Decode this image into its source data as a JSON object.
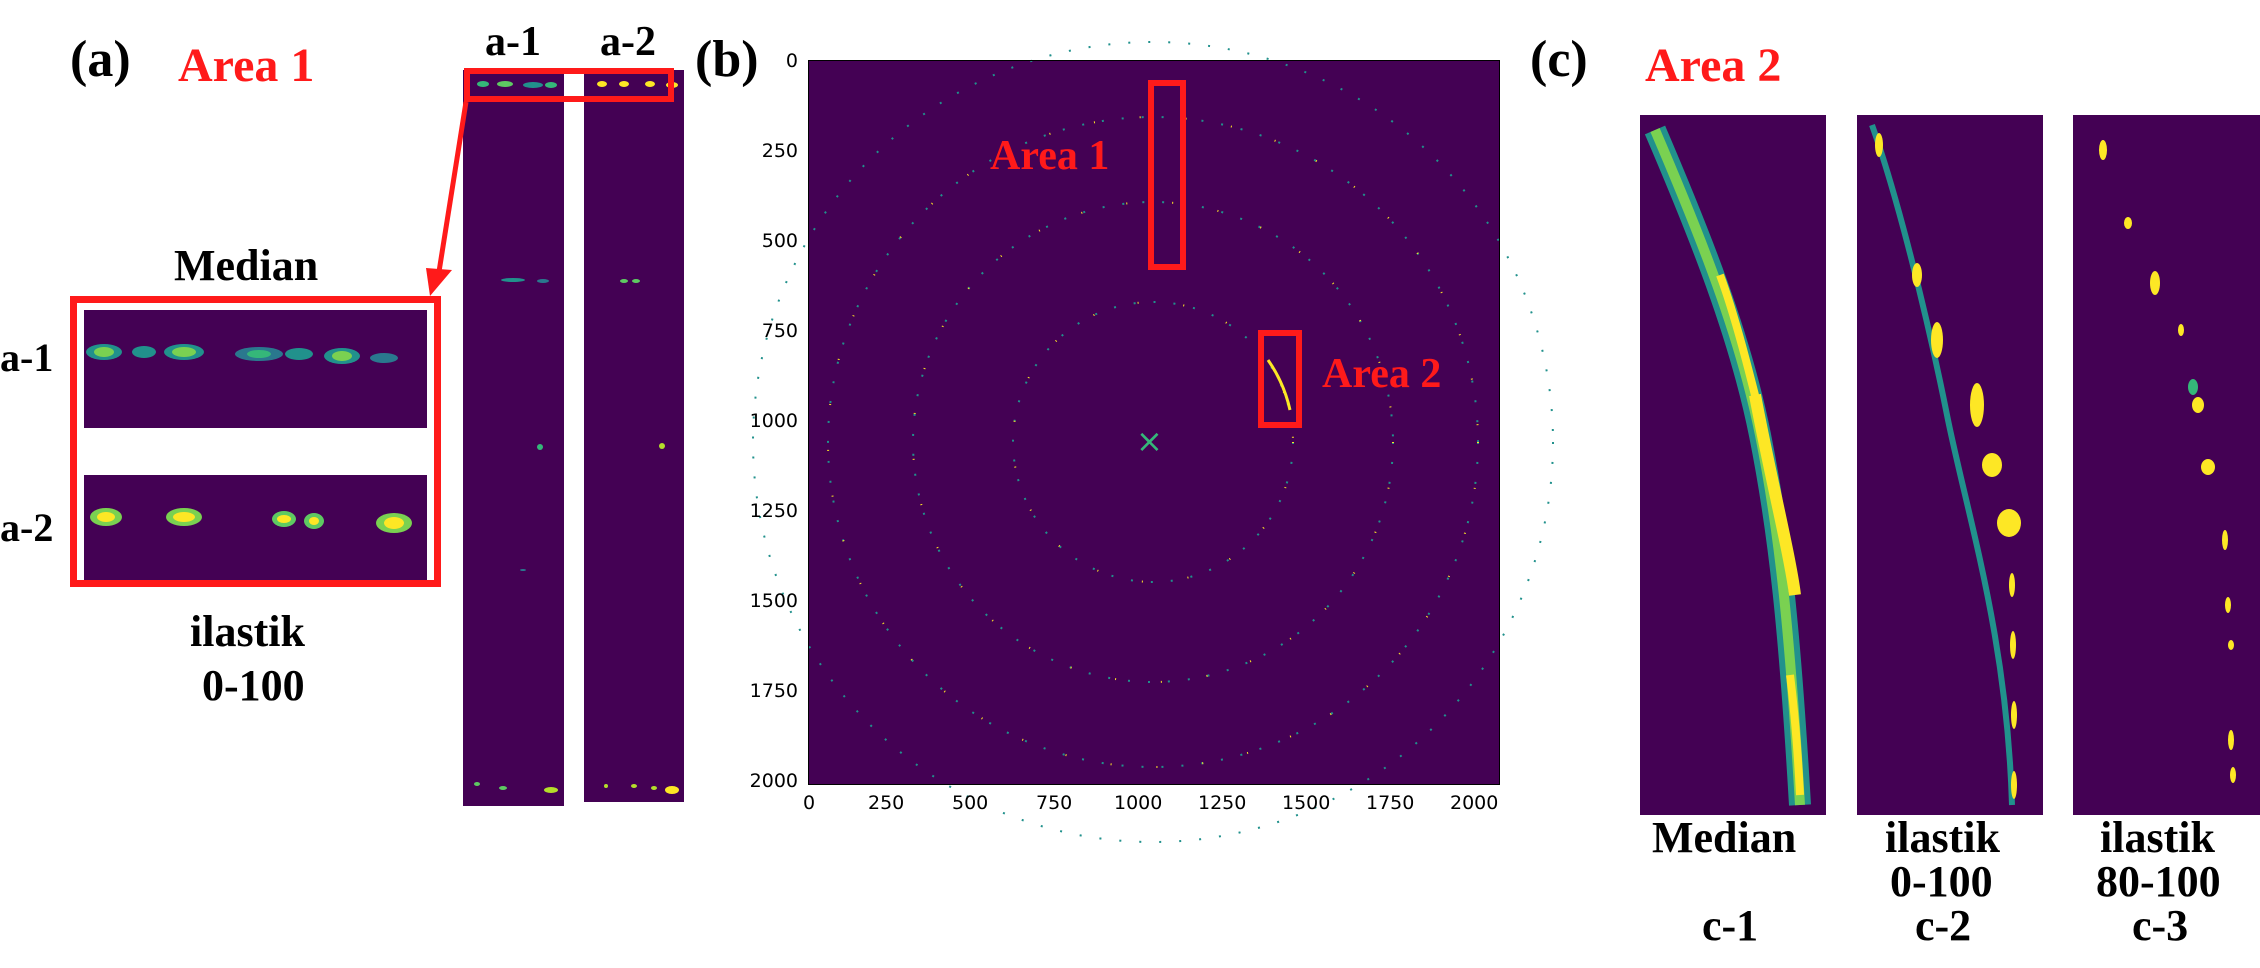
{
  "panel_a": {
    "label": "(a)",
    "area_title": "Area 1",
    "strip_label_1": "a-1",
    "strip_label_2": "a-2",
    "zoom_title": "Median",
    "zoom_row_1": "a-1",
    "zoom_row_2": "a-2",
    "caption_line_1": "ilastik",
    "caption_line_2": "0-100"
  },
  "panel_b": {
    "label": "(b)",
    "area_1": "Area 1",
    "area_2": "Area 2",
    "x_ticks": [
      "0",
      "250",
      "500",
      "750",
      "1000",
      "1250",
      "1500",
      "1750",
      "2000"
    ],
    "y_ticks": [
      "0",
      "250",
      "500",
      "750",
      "1000",
      "1250",
      "1500",
      "1750",
      "2000"
    ],
    "beam_center_marker": "×"
  },
  "panel_c": {
    "label": "(c)",
    "area_title": "Area 2",
    "images": [
      {
        "caption_1": "Median",
        "caption_2": "",
        "id_label": "c-1"
      },
      {
        "caption_1": "ilastik",
        "caption_2": "0-100",
        "id_label": "c-2"
      },
      {
        "caption_1": "ilastik",
        "caption_2": "80-100",
        "id_label": "c-3"
      }
    ]
  },
  "colors": {
    "background_viridis": "#440154",
    "spot_yellow": "#fde725",
    "spot_green": "#35b779",
    "spot_teal": "#21918c",
    "annotation_red": "#ff1a1a"
  }
}
